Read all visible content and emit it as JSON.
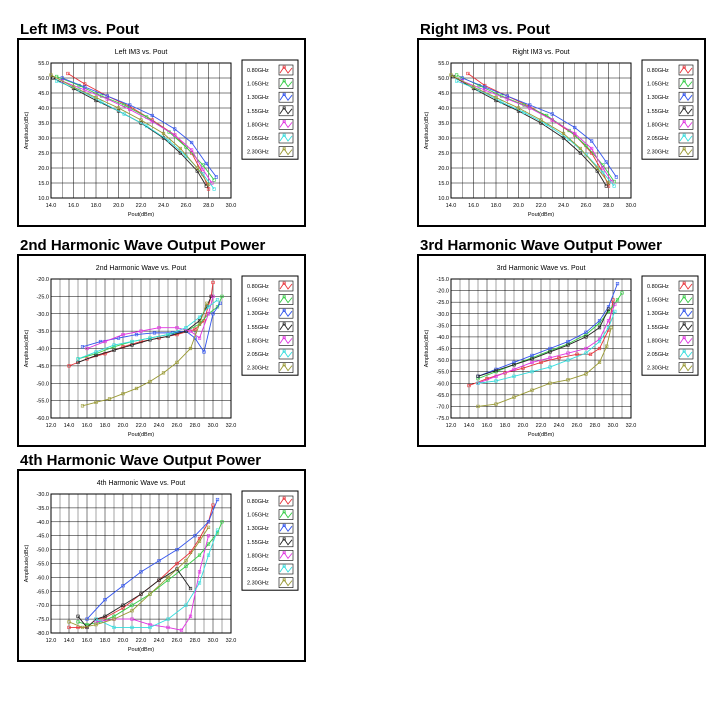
{
  "headings": {
    "left_im3": "Left  IM3  vs.  Pout",
    "right_im3": "Right  IM3  vs.  Pout",
    "h2": "2nd Harmonic Wave Output Power",
    "h3": "3rd Harmonic Wave Output Power",
    "h4": "4th Harmonic Wave Output Power"
  },
  "colors": [
    "#e8333a",
    "#33cc44",
    "#3355ee",
    "#222222",
    "#e033e0",
    "#33dddd",
    "#999933"
  ],
  "legend": [
    "0.80GHz",
    "1.05GHz",
    "1.30GHz",
    "1.55GHz",
    "1.80GHz",
    "2.05GHz",
    "2.30GHz"
  ],
  "chart_data": [
    {
      "id": "left_im3",
      "type": "line",
      "title": "Left IM3 vs. Pout",
      "xlabel": "Pout(dBm)",
      "ylabel": "Amplitude(dBc)",
      "xlim": [
        14,
        30
      ],
      "ylim": [
        10,
        55
      ],
      "xticks": [
        "14.0",
        "16.0",
        "18.0",
        "20.0",
        "22.0",
        "24.0",
        "26.0",
        "28.0",
        "30.0"
      ],
      "yticks": [
        "10.0",
        "15.0",
        "20.0",
        "25.0",
        "30.0",
        "35.0",
        "40.0",
        "45.0",
        "50.0",
        "55.0"
      ],
      "grid": true,
      "legend_position": "right",
      "series": [
        {
          "name": "0.80GHz",
          "x": [
            15.5,
            17,
            19,
            21,
            23,
            25,
            26.5,
            27.5,
            28
          ],
          "y": [
            51.5,
            48,
            44,
            40.5,
            36,
            31,
            25,
            18,
            13
          ]
        },
        {
          "name": "1.05GHz",
          "x": [
            14.5,
            16.5,
            18.5,
            20.5,
            22.5,
            24.5,
            26,
            27.5,
            28.5
          ],
          "y": [
            50.5,
            47.5,
            44,
            41,
            37,
            32,
            27,
            21,
            16
          ]
        },
        {
          "name": "1.30GHz",
          "x": [
            15,
            17,
            19,
            21,
            23,
            25,
            26.5,
            27.8,
            28.7
          ],
          "y": [
            50,
            47,
            44,
            41,
            37.5,
            33,
            28.5,
            21.5,
            17
          ]
        },
        {
          "name": "1.55GHz",
          "x": [
            14.2,
            16,
            18,
            20,
            22,
            24,
            25.5,
            27,
            27.8
          ],
          "y": [
            50,
            46.5,
            42.5,
            39,
            35,
            30,
            25,
            19,
            14
          ]
        },
        {
          "name": "1.80GHz",
          "x": [
            15,
            17,
            19,
            21,
            23,
            25,
            26.5,
            27.5,
            28.3
          ],
          "y": [
            49,
            46,
            43,
            39.5,
            35.5,
            31,
            26,
            19.5,
            15
          ]
        },
        {
          "name": "2.05GHz",
          "x": [
            14.5,
            16.5,
            18.5,
            20.5,
            22.5,
            24.5,
            26,
            27.5,
            28.5
          ],
          "y": [
            49,
            46,
            42,
            38,
            34,
            29,
            24,
            18,
            13
          ]
        },
        {
          "name": "2.30GHz",
          "x": [
            14,
            16,
            18,
            20,
            22,
            24,
            25.5,
            27,
            28
          ],
          "y": [
            51,
            47,
            43.5,
            40,
            36,
            31.5,
            26.5,
            20,
            14.5
          ]
        }
      ]
    },
    {
      "id": "right_im3",
      "type": "line",
      "title": "Right IM3 vs. Pout",
      "xlabel": "Pout(dBm)",
      "ylabel": "Amplitude(dBc)",
      "xlim": [
        14,
        30
      ],
      "ylim": [
        10,
        55
      ],
      "xticks": [
        "14.0",
        "16.0",
        "18.0",
        "20.0",
        "22.0",
        "24.0",
        "26.0",
        "28.0",
        "30.0"
      ],
      "yticks": [
        "10.0",
        "15.0",
        "20.0",
        "25.0",
        "30.0",
        "35.0",
        "40.0",
        "45.0",
        "50.0",
        "55.0"
      ],
      "grid": true,
      "legend_position": "right",
      "series": [
        {
          "name": "0.80GHz",
          "x": [
            15.5,
            17,
            19,
            21,
            23,
            25,
            26.5,
            27.5,
            28
          ],
          "y": [
            51.5,
            47.5,
            44,
            40.5,
            36,
            31,
            25,
            18.5,
            14
          ]
        },
        {
          "name": "1.05GHz",
          "x": [
            14.5,
            16.5,
            18.5,
            20.5,
            22.5,
            24.5,
            26,
            27.5,
            28.5
          ],
          "y": [
            51,
            47.5,
            44,
            41,
            37.5,
            32.5,
            27.5,
            21,
            15.5
          ]
        },
        {
          "name": "1.30GHz",
          "x": [
            15,
            17,
            19,
            21,
            23,
            25,
            26.5,
            27.8,
            28.7
          ],
          "y": [
            50,
            47,
            44,
            41,
            38,
            33.5,
            29,
            22,
            17
          ]
        },
        {
          "name": "1.55GHz",
          "x": [
            14.2,
            16,
            18,
            20,
            22,
            24,
            25.5,
            27,
            27.8
          ],
          "y": [
            50.5,
            46.5,
            42.5,
            39,
            35,
            30,
            25,
            19,
            14
          ]
        },
        {
          "name": "1.80GHz",
          "x": [
            15,
            17,
            19,
            21,
            23,
            25,
            26.5,
            27.5,
            28.3
          ],
          "y": [
            49,
            46,
            43,
            40,
            36,
            31.5,
            26.5,
            20,
            15.5
          ]
        },
        {
          "name": "2.05GHz",
          "x": [
            14.5,
            16.5,
            18.5,
            20.5,
            22.5,
            24.5,
            26,
            27.5,
            28.5
          ],
          "y": [
            49,
            46,
            42,
            38.5,
            34.5,
            29.5,
            24.5,
            18.5,
            14
          ]
        },
        {
          "name": "2.30GHz",
          "x": [
            14,
            16,
            18,
            20,
            22,
            24,
            25.5,
            27,
            28
          ],
          "y": [
            51,
            47,
            43.5,
            40,
            36,
            31.5,
            26.5,
            20,
            15
          ]
        }
      ]
    },
    {
      "id": "h2",
      "type": "line",
      "title": "2nd Harmonic Wave vs. Pout",
      "xlabel": "Pout(dBm)",
      "ylabel": "Amplitude(dBc)",
      "xlim": [
        12,
        32
      ],
      "ylim": [
        -60,
        -20
      ],
      "xticks": [
        "12.0",
        "14.0",
        "16.0",
        "18.0",
        "20.0",
        "22.0",
        "24.0",
        "26.0",
        "28.0",
        "30.0",
        "32.0"
      ],
      "yticks": [
        "-20.0",
        "-25.0",
        "-30.0",
        "-35.0",
        "-40.0",
        "-45.0",
        "-50.0",
        "-55.0",
        "-60.0"
      ],
      "grid": true,
      "legend_position": "right",
      "series": [
        {
          "name": "0.80GHz",
          "x": [
            14,
            16,
            18,
            20,
            22,
            24,
            26,
            28,
            29,
            29.8,
            30
          ],
          "y": [
            -45,
            -43,
            -41.5,
            -39.5,
            -38,
            -37,
            -36,
            -34.5,
            -32,
            -25,
            -21
          ]
        },
        {
          "name": "1.05GHz",
          "x": [
            15,
            17,
            19,
            21,
            23,
            25,
            27,
            28.5,
            29.5,
            30.5,
            31
          ],
          "y": [
            -43,
            -41.5,
            -39.5,
            -38,
            -37,
            -36,
            -35,
            -33,
            -30,
            -28,
            -25
          ]
        },
        {
          "name": "1.30GHz",
          "x": [
            15.5,
            17.5,
            19.5,
            21.5,
            23.5,
            25.5,
            27,
            28,
            29,
            30,
            30.8
          ],
          "y": [
            -39.5,
            -38,
            -37,
            -36,
            -35.5,
            -35.5,
            -35,
            -37,
            -41,
            -30,
            -27
          ]
        },
        {
          "name": "1.55GHz",
          "x": [
            15,
            17,
            19,
            21,
            23,
            25,
            27,
            28.5,
            29.3,
            29.8
          ],
          "y": [
            -44,
            -42,
            -40.5,
            -39,
            -37.5,
            -36.5,
            -35,
            -32,
            -28,
            -25
          ]
        },
        {
          "name": "1.80GHz",
          "x": [
            16,
            18,
            20,
            22,
            24,
            26,
            27.5,
            28.5,
            29.5,
            30
          ],
          "y": [
            -40,
            -38,
            -36,
            -35,
            -34,
            -34,
            -35,
            -37,
            -30,
            -25
          ]
        },
        {
          "name": "2.05GHz",
          "x": [
            15,
            17,
            19,
            21,
            23,
            25,
            27,
            28.5,
            29.5,
            30.5
          ],
          "y": [
            -43,
            -41,
            -39,
            -38,
            -37,
            -36,
            -34,
            -31,
            -28,
            -26
          ]
        },
        {
          "name": "2.30GHz",
          "x": [
            15.5,
            17,
            18.5,
            20,
            21.5,
            23,
            24.5,
            26,
            27.5,
            28.5,
            29.3
          ],
          "y": [
            -56.5,
            -55.5,
            -54.5,
            -53,
            -51.5,
            -49.5,
            -47,
            -44,
            -40,
            -33,
            -27
          ]
        }
      ]
    },
    {
      "id": "h3",
      "type": "line",
      "title": "3rd Harmonic Wave vs. Pout",
      "xlabel": "Pout(dBm)",
      "ylabel": "Amplitude(dBc)",
      "xlim": [
        12,
        32
      ],
      "ylim": [
        -75,
        -15
      ],
      "xticks": [
        "12.0",
        "14.0",
        "16.0",
        "18.0",
        "20.0",
        "22.0",
        "24.0",
        "26.0",
        "28.0",
        "30.0",
        "32.0"
      ],
      "yticks": [
        "-15.0",
        "-20.0",
        "-25.0",
        "-30.0",
        "-35.0",
        "-40.0",
        "-45.0",
        "-50.0",
        "-55.0",
        "-60.0",
        "-65.0",
        "-70.0",
        "-75.0"
      ],
      "grid": true,
      "legend_position": "right",
      "series": [
        {
          "name": "0.80GHz",
          "x": [
            14,
            16,
            18,
            20,
            22,
            24,
            26,
            27.5,
            28.5,
            29.5,
            30
          ],
          "y": [
            -61,
            -58,
            -55.5,
            -53.5,
            -51,
            -49,
            -47.5,
            -47.5,
            -45,
            -37,
            -24
          ]
        },
        {
          "name": "1.05GHz",
          "x": [
            15,
            17,
            19,
            21,
            23,
            25,
            27,
            28.5,
            29.5,
            30.5,
            31
          ],
          "y": [
            -58,
            -55,
            -52,
            -49,
            -46,
            -43,
            -39,
            -34,
            -29,
            -24,
            -21
          ]
        },
        {
          "name": "1.30GHz",
          "x": [
            15,
            17,
            19,
            21,
            23,
            25,
            27,
            28.5,
            29.5,
            30.5
          ],
          "y": [
            -57,
            -54,
            -51,
            -48,
            -45,
            -42,
            -38,
            -33,
            -27,
            -17
          ]
        },
        {
          "name": "1.55GHz",
          "x": [
            15,
            17,
            19,
            21,
            23,
            25,
            27,
            28.5,
            29.5
          ],
          "y": [
            -57,
            -54.5,
            -52,
            -49.5,
            -46.5,
            -43.5,
            -40,
            -36,
            -28
          ]
        },
        {
          "name": "1.80GHz",
          "x": [
            15,
            17,
            19,
            21,
            23,
            25,
            27,
            28.5,
            29.5,
            30.2
          ],
          "y": [
            -60,
            -57,
            -54,
            -51,
            -49,
            -47,
            -45,
            -41,
            -33,
            -26
          ]
        },
        {
          "name": "2.05GHz",
          "x": [
            15,
            17,
            19,
            21,
            23,
            25,
            27,
            28.5,
            29.5,
            30.2
          ],
          "y": [
            -60,
            -59,
            -57,
            -55,
            -53,
            -50,
            -47,
            -42,
            -36,
            -29
          ]
        },
        {
          "name": "2.30GHz",
          "x": [
            15,
            17,
            19,
            21,
            23,
            25,
            27,
            28.5,
            29.3,
            29.8
          ],
          "y": [
            -70,
            -69,
            -66,
            -63,
            -60,
            -58.5,
            -56,
            -51,
            -44,
            -36
          ]
        }
      ]
    },
    {
      "id": "h4",
      "type": "line",
      "title": "4th Harmonic Wave vs. Pout",
      "xlabel": "Pout(dBm)",
      "ylabel": "Amplitude(dBc)",
      "xlim": [
        12,
        32
      ],
      "ylim": [
        -80,
        -30
      ],
      "xticks": [
        "12.0",
        "14.0",
        "16.0",
        "18.0",
        "20.0",
        "22.0",
        "24.0",
        "26.0",
        "28.0",
        "30.0",
        "32.0"
      ],
      "yticks": [
        "-30.0",
        "-35.0",
        "-40.0",
        "-45.0",
        "-50.0",
        "-55.0",
        "-60.0",
        "-65.0",
        "-70.0",
        "-75.0",
        "-80.0"
      ],
      "grid": true,
      "legend_position": "right",
      "series": [
        {
          "name": "0.80GHz",
          "x": [
            14,
            15,
            16,
            17,
            18,
            20,
            22,
            24,
            26,
            27.5,
            28.5,
            29.5,
            30
          ],
          "y": [
            -78,
            -78,
            -78,
            -75,
            -74.5,
            -71,
            -66,
            -61,
            -55,
            -51,
            -46,
            -40,
            -34
          ]
        },
        {
          "name": "1.05GHz",
          "x": [
            15,
            16,
            17.5,
            19,
            21,
            23,
            25,
            27,
            28.5,
            29.5,
            30.5,
            31
          ],
          "y": [
            -76,
            -77,
            -76,
            -74,
            -70,
            -66,
            -61,
            -56,
            -52,
            -48,
            -44,
            -40
          ]
        },
        {
          "name": "1.30GHz",
          "x": [
            16,
            18,
            20,
            22,
            24,
            26,
            28,
            29.5,
            30.5
          ],
          "y": [
            -75,
            -68,
            -63,
            -58,
            -54,
            -50,
            -45,
            -40,
            -32
          ]
        },
        {
          "name": "1.55GHz",
          "x": [
            15,
            16,
            17,
            18,
            20,
            22,
            24,
            26,
            27.5
          ],
          "y": [
            -74,
            -78,
            -75,
            -74,
            -70,
            -66,
            -61,
            -57,
            -64
          ]
        },
        {
          "name": "1.80GHz",
          "x": [
            17,
            19,
            21,
            23,
            25,
            26.5,
            27.5,
            28.5,
            29.5
          ],
          "y": [
            -76,
            -75,
            -75,
            -77,
            -78,
            -79,
            -74,
            -58,
            -45
          ]
        },
        {
          "name": "2.05GHz",
          "x": [
            17,
            19,
            21,
            23,
            25,
            27,
            28.5,
            29.5,
            30.5
          ],
          "y": [
            -75,
            -78,
            -78,
            -78,
            -75,
            -70,
            -62,
            -52,
            -43
          ]
        },
        {
          "name": "2.30GHz",
          "x": [
            14,
            15.5,
            17,
            19,
            21,
            23,
            25,
            27,
            28.5,
            29.5
          ],
          "y": [
            -76,
            -78,
            -77,
            -75,
            -72,
            -66,
            -60,
            -54,
            -47,
            -42
          ]
        }
      ]
    }
  ]
}
